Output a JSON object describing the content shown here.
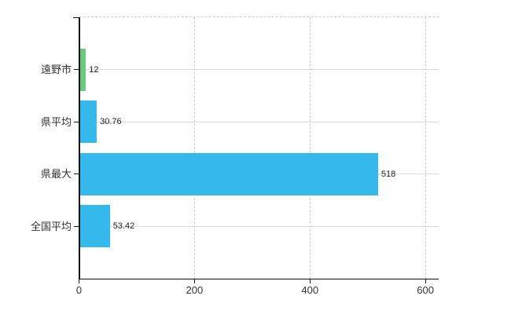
{
  "chart_data": {
    "type": "bar",
    "orientation": "horizontal",
    "categories": [
      "遠野市",
      "県平均",
      "県最大",
      "全国平均"
    ],
    "values": [
      12,
      30.76,
      518,
      53.42
    ],
    "value_labels": [
      "12",
      "30.76",
      "518",
      "53.42"
    ],
    "bar_colors": [
      "#6DC97E",
      "#35B9EC",
      "#35B9EC",
      "#35B9EC"
    ],
    "x_tick_values": [
      0,
      200,
      400,
      600
    ],
    "x_tick_labels": [
      "0",
      "200",
      "400",
      "600"
    ],
    "xlim": [
      0,
      623
    ],
    "grid": {
      "vertical": "dashed",
      "horizontal": "solid"
    },
    "legend": "none"
  },
  "colors": {
    "bar_blue": "#35B9EC",
    "bar_green": "#6DC97E",
    "axis": "#111111",
    "gridline_horizontal": "#d9d9d9",
    "gridline_vertical": "#d0cad0",
    "background": "#ffffff",
    "label_text": "#333333"
  }
}
